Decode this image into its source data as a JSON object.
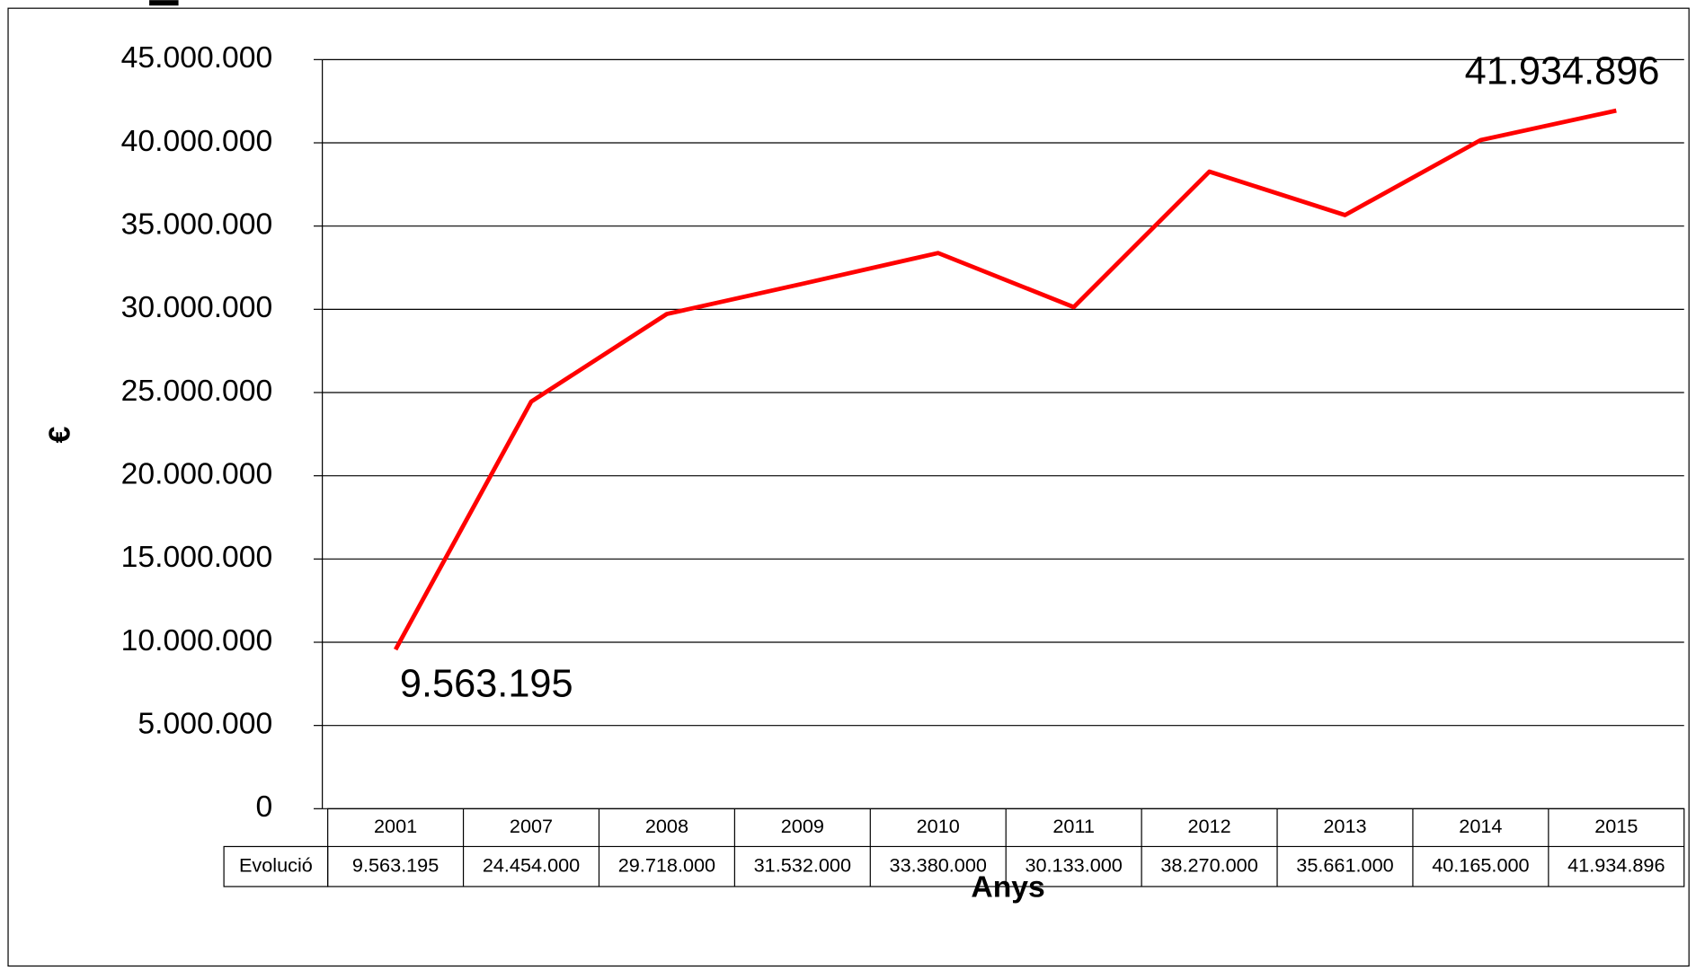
{
  "chart_data": {
    "type": "line",
    "x_label": "Anys",
    "y_label": "€",
    "categories": [
      "2001",
      "2007",
      "2008",
      "2009",
      "2010",
      "2011",
      "2012",
      "2013",
      "2014",
      "2015"
    ],
    "series": [
      {
        "name": "Evolució",
        "color": "#ff0000",
        "values": [
          9563195,
          24454000,
          29718000,
          31532000,
          33380000,
          30133000,
          38270000,
          35661000,
          40165000,
          41934896
        ],
        "value_labels": [
          "9.563.195",
          "24.454.000",
          "29.718.000",
          "31.532.000",
          "33.380.000",
          "30.133.000",
          "38.270.000",
          "35.661.000",
          "40.165.000",
          "41.934.896"
        ]
      }
    ],
    "ylim": [
      0,
      45000000
    ],
    "yticks": [
      0,
      {
        "value": 5000000,
        "label": "5.000.000"
      },
      {
        "value": 10000000,
        "label": "10.000.000"
      },
      {
        "value": 15000000,
        "label": "15.000.000"
      },
      {
        "value": 20000000,
        "label": "20.000.000"
      },
      {
        "value": 25000000,
        "label": "25.000.000"
      },
      {
        "value": 30000000,
        "label": "30.000.000"
      },
      {
        "value": 35000000,
        "label": "35.000.000"
      },
      {
        "value": 40000000,
        "label": "40.000.000"
      },
      {
        "value": 45000000,
        "label": "45.000.000"
      }
    ],
    "grid": true
  }
}
